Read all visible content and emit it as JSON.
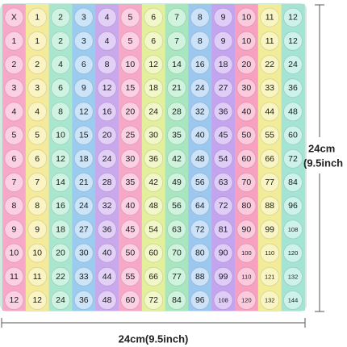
{
  "dimensions": {
    "height_label": "24cm",
    "height_label_inch": "(9.5inch",
    "width_label": "24cm(9.5inch)"
  },
  "table": {
    "header": [
      "X",
      1,
      2,
      3,
      4,
      5,
      6,
      7,
      8,
      9,
      10,
      11,
      12
    ],
    "rows": [
      [
        1,
        1,
        2,
        3,
        4,
        5,
        6,
        7,
        8,
        9,
        10,
        11,
        12
      ],
      [
        2,
        2,
        4,
        6,
        8,
        10,
        12,
        14,
        16,
        18,
        20,
        22,
        24
      ],
      [
        3,
        3,
        6,
        9,
        12,
        15,
        18,
        21,
        24,
        27,
        30,
        33,
        36
      ],
      [
        4,
        4,
        8,
        12,
        16,
        20,
        24,
        28,
        32,
        36,
        40,
        44,
        48
      ],
      [
        5,
        5,
        10,
        15,
        20,
        25,
        30,
        35,
        40,
        45,
        50,
        55,
        60
      ],
      [
        6,
        6,
        12,
        18,
        24,
        30,
        36,
        42,
        48,
        54,
        60,
        66,
        72
      ],
      [
        7,
        7,
        14,
        21,
        28,
        35,
        42,
        49,
        56,
        63,
        70,
        77,
        84
      ],
      [
        8,
        8,
        16,
        24,
        32,
        40,
        48,
        56,
        64,
        72,
        80,
        88,
        96
      ],
      [
        9,
        9,
        18,
        27,
        36,
        45,
        54,
        63,
        72,
        81,
        90,
        99,
        108
      ],
      [
        10,
        10,
        20,
        30,
        40,
        50,
        60,
        70,
        80,
        90,
        100,
        110,
        120
      ],
      [
        11,
        11,
        22,
        33,
        44,
        55,
        66,
        77,
        88,
        99,
        110,
        121,
        132
      ],
      [
        12,
        12,
        24,
        36,
        48,
        60,
        72,
        84,
        96,
        108,
        120,
        132,
        144
      ]
    ]
  }
}
